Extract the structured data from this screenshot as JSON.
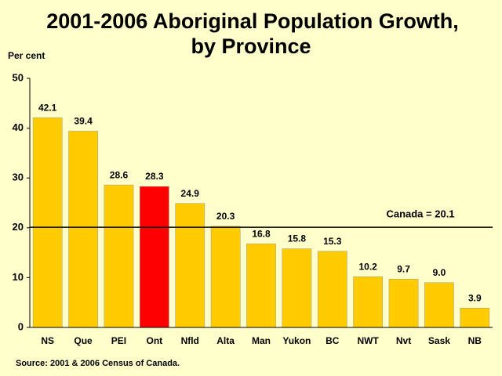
{
  "chart_data": {
    "type": "bar",
    "title": [
      "2001-2006 Aboriginal Population Growth,",
      "by Province"
    ],
    "y_label": "Per cent",
    "categories": [
      "NS",
      "Que",
      "PEI",
      "Ont",
      "Nfld",
      "Alta",
      "Man",
      "Yukon",
      "BC",
      "NWT",
      "Nvt",
      "Sask",
      "NB"
    ],
    "values": [
      42.1,
      39.4,
      28.6,
      28.3,
      24.9,
      20.3,
      16.8,
      15.8,
      15.3,
      10.2,
      9.7,
      9.0,
      3.9
    ],
    "value_labels": [
      "42.1",
      "39.4",
      "28.6",
      "28.3",
      "24.9",
      "20.3",
      "16.8",
      "15.8",
      "15.3",
      "10.2",
      "9.7",
      "9.0",
      "3.9"
    ],
    "colors": [
      "#ffcc00",
      "#ffcc00",
      "#ffcc00",
      "#ff0000",
      "#ffcc00",
      "#ffcc00",
      "#ffcc00",
      "#ffcc00",
      "#ffcc00",
      "#ffcc00",
      "#ffcc00",
      "#ffcc00",
      "#ffcc00"
    ],
    "ylim": [
      0,
      50
    ],
    "yticks": [
      0,
      10,
      20,
      30,
      40,
      50
    ],
    "grid": false,
    "reference_line": {
      "value": 20.1,
      "label": "Canada = 20.1"
    },
    "source": "Source: 2001 & 2006 Census of Canada."
  }
}
